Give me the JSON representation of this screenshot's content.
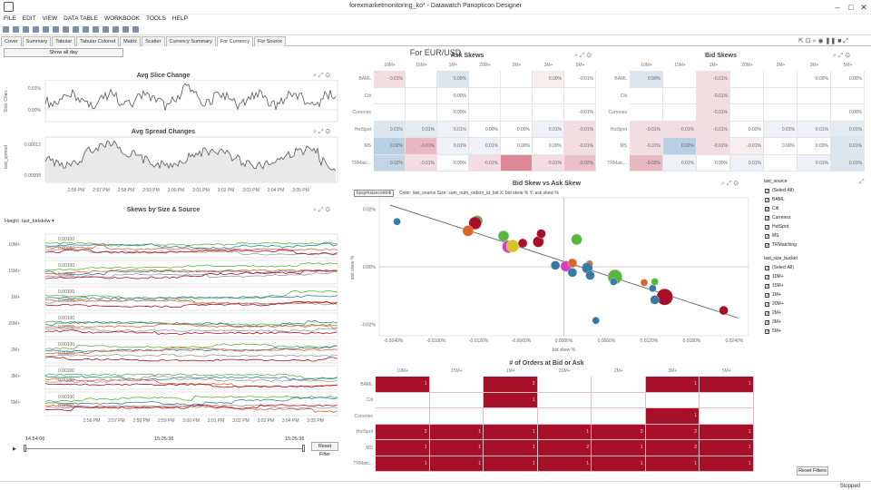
{
  "window": {
    "title": "forexmarketmonitoring_ko* - Datawatch Panopticon Designer"
  },
  "menu": [
    "FILE",
    "EDIT",
    "VIEW",
    "DATA TABLE",
    "WORKBOOK",
    "TOOLS",
    "HELP"
  ],
  "tabs": [
    "Cover",
    "Summary",
    "Tabular",
    "Tabular Colored",
    "Matrix",
    "Scatter",
    "Currency Summary",
    "For Currency",
    "For Source"
  ],
  "active_tab": "For Currency",
  "page_title": "For EUR/USD",
  "show_all_day": "Show all day",
  "avg_slice": {
    "title": "Avg Slice Change",
    "ylabel": "Slice Chan...",
    "yticks": [
      "0.01%",
      "0.00%"
    ]
  },
  "avg_spread": {
    "title": "Avg Spread Changes",
    "ylabel": "last_spread",
    "yticks": [
      "0.00012",
      "0.00008"
    ]
  },
  "time_ticks": [
    "2:56 PM",
    "2:57 PM",
    "2:58 PM",
    "2:59 PM",
    "3:00 PM",
    "3:01 PM",
    "3:02 PM",
    "3:03 PM",
    "3:04 PM",
    "3:05 PM"
  ],
  "skews": {
    "title": "Skews by Size & Source",
    "height_label": "Height",
    "height_value": "last_bidskew",
    "rows": [
      "10M+",
      "15M+",
      "1M+",
      "20M+",
      "2M+",
      "3M+",
      "5M+"
    ],
    "ytick_a": "0.00100",
    "ytick_b": "0.00050"
  },
  "slider": {
    "start": "14:54:06",
    "mid": "15:05:36",
    "end": "15:05:36",
    "reset": "Reset Filter"
  },
  "ask_skews": {
    "title": "Ask Skews",
    "cols": [
      "10M+",
      "15M+",
      "1M+",
      "20M+",
      "2M+",
      "3M+",
      "5M+"
    ],
    "rows": [
      "BAML",
      "Citi",
      "Currenex",
      "HotSpot",
      "MS",
      "TRMatc..."
    ],
    "cells": [
      [
        "-0.01%",
        "",
        "0.00%",
        "",
        "",
        "0.00%",
        "-0.01%"
      ],
      [
        "",
        "",
        "0.00%",
        "",
        "",
        "",
        ""
      ],
      [
        "",
        "",
        "0.00%",
        "",
        "",
        "",
        "-0.01%"
      ],
      [
        "0.01%",
        "0.01%",
        "0.01%",
        "0.00%",
        "0.00%",
        "0.01%",
        "-0.01%"
      ],
      [
        "0.02%",
        "-0.01%",
        "0.01%",
        "0.01%",
        "0.00%",
        "0.00%",
        "-0.01%"
      ],
      [
        "0.02%",
        "-0.01%",
        "0.00%",
        "-0.01%",
        "",
        "-0.01%",
        "-0.02%"
      ]
    ],
    "colors": [
      [
        "#f3dde2",
        "",
        "#dbe6ef",
        "",
        "",
        "#f7eef0",
        ""
      ],
      [
        "",
        "",
        "",
        "",
        "",
        "",
        ""
      ],
      [
        "",
        "",
        "",
        "",
        "",
        "",
        ""
      ],
      [
        "#dbe6ef",
        "#e4ecf2",
        "#eef2f6",
        "",
        "",
        "#eef2f6",
        "#f3dde2"
      ],
      [
        "#b9cfe2",
        "#e9b8c2",
        "#eef2f6",
        "#eef2f6",
        "",
        "",
        "#f3dde2"
      ],
      [
        "#c4d6e6",
        "#f3dde2",
        "",
        "#f3dde2",
        "#dd8896",
        "#f3dde2",
        "#ebc0c8"
      ]
    ]
  },
  "bid_skews": {
    "title": "Bid Skews",
    "cols": [
      "10M+",
      "15M+",
      "1M+",
      "20M+",
      "2M+",
      "3M+",
      "5M+"
    ],
    "rows": [
      "BAML",
      "Citi",
      "Currenex",
      "HotSpot",
      "MS",
      "TRMatc..."
    ],
    "cells": [
      [
        "0.00%",
        "",
        "-0.01%",
        "",
        "",
        "0.00%",
        "0.00%"
      ],
      [
        "",
        "",
        "-0.01%",
        "",
        "",
        "",
        ""
      ],
      [
        "",
        "",
        "-0.01%",
        "",
        "",
        "",
        "0.00%"
      ],
      [
        "-0.01%",
        "-0.01%",
        "-0.01%",
        "0.00%",
        "0.01%",
        "0.01%",
        "0.01%"
      ],
      [
        "-0.01%",
        "0.02%",
        "-0.01%",
        "-0.01%",
        "0.00%",
        "0.00%",
        "0.01%"
      ],
      [
        "-0.02%",
        "0.01%",
        "0.00%",
        "0.01%",
        "",
        "0.01%",
        "0.01%"
      ]
    ],
    "colors": [
      [
        "#dbe6ef",
        "",
        "#f3dde2",
        "",
        "",
        "",
        ""
      ],
      [
        "",
        "",
        "#f3dde2",
        "",
        "",
        "",
        ""
      ],
      [
        "",
        "",
        "#f3dde2",
        "",
        "",
        "",
        ""
      ],
      [
        "#f3dde2",
        "#f3dde2",
        "#f3dde2",
        "",
        "#eef2f6",
        "#eef2f6",
        "#e4ecf2"
      ],
      [
        "#f3dde2",
        "#b9cfe2",
        "#f3dde2",
        "#f7eef0",
        "",
        "",
        "#dbe6ef"
      ],
      [
        "#e9b8c2",
        "#eef2f6",
        "",
        "#eef2f6",
        "",
        "#eef2f6",
        "#dbe6ef"
      ]
    ]
  },
  "scatter": {
    "title": "Bid Skew vs Ask Skew",
    "legend_sel": "bysymsizecontrib",
    "legend_text": "Color: last_source  Size: sum_num_orders_at_bid  X: bid skew %  Y: ask skew %",
    "xlabel": "bid skew %",
    "ylabel": "ask skew %",
    "xticks": [
      "-0.0240%",
      "-0.0180%",
      "-0.0120%",
      "-0.0060%",
      "0.0000%",
      "0.0060%",
      "0.0120%",
      "0.0180%",
      "0.0240%"
    ],
    "yticks": [
      "0.02%",
      "0.00%",
      "-0.02%"
    ]
  },
  "chart_data": [
    {
      "type": "scatter",
      "title": "Bid Skew vs Ask Skew",
      "xlabel": "bid skew %",
      "ylabel": "ask skew %",
      "xlim": [
        -0.026,
        0.026
      ],
      "ylim": [
        -0.024,
        0.024
      ],
      "points": [
        {
          "x": -0.0235,
          "y": 0.0157,
          "size": 4,
          "color": "#3a79a6"
        },
        {
          "x": -0.0122,
          "y": 0.016,
          "size": 6,
          "color": "#5ab53e"
        },
        {
          "x": -0.0125,
          "y": 0.0152,
          "size": 7,
          "color": "#a8102a"
        },
        {
          "x": -0.0135,
          "y": 0.0125,
          "size": 6,
          "color": "#d8672b"
        },
        {
          "x": -0.0085,
          "y": 0.0107,
          "size": 6,
          "color": "#5ab53e"
        },
        {
          "x": -0.0078,
          "y": 0.007,
          "size": 7,
          "color": "#d441c0"
        },
        {
          "x": -0.0072,
          "y": 0.0072,
          "size": 7,
          "color": "#d9c32a"
        },
        {
          "x": -0.0058,
          "y": 0.0082,
          "size": 5,
          "color": "#a8102a"
        },
        {
          "x": -0.0036,
          "y": 0.0087,
          "size": 6,
          "color": "#a8102a"
        },
        {
          "x": -0.0032,
          "y": 0.0115,
          "size": 5,
          "color": "#a8102a"
        },
        {
          "x": -0.0012,
          "y": 0.0005,
          "size": 5,
          "color": "#3a79a6"
        },
        {
          "x": 0.0003,
          "y": 0.0002,
          "size": 6,
          "color": "#d441c0"
        },
        {
          "x": 0.0012,
          "y": 0.0013,
          "size": 5,
          "color": "#d8672b"
        },
        {
          "x": 0.0012,
          "y": -0.002,
          "size": 5,
          "color": "#3a79a6"
        },
        {
          "x": 0.0018,
          "y": 0.0095,
          "size": 6,
          "color": "#5ab53e"
        },
        {
          "x": 0.0036,
          "y": 0.001,
          "size": 4,
          "color": "#d8672b"
        },
        {
          "x": 0.0033,
          "y": -0.0004,
          "size": 6,
          "color": "#3a79a6"
        },
        {
          "x": 0.0037,
          "y": -0.003,
          "size": 5,
          "color": "#3a79a6"
        },
        {
          "x": 0.0072,
          "y": -0.0035,
          "size": 8,
          "color": "#5ab53e"
        },
        {
          "x": 0.007,
          "y": -0.0052,
          "size": 4,
          "color": "#3a79a6"
        },
        {
          "x": 0.0113,
          "y": -0.0055,
          "size": 4,
          "color": "#d8672b"
        },
        {
          "x": 0.0125,
          "y": -0.0075,
          "size": 4,
          "color": "#3a79a6"
        },
        {
          "x": 0.0128,
          "y": -0.0052,
          "size": 4,
          "color": "#5ab53e"
        },
        {
          "x": 0.0142,
          "y": -0.0105,
          "size": 9,
          "color": "#a8102a"
        },
        {
          "x": 0.0128,
          "y": -0.0115,
          "size": 5,
          "color": "#3a79a6"
        },
        {
          "x": 0.0045,
          "y": -0.0187,
          "size": 4,
          "color": "#3a79a6"
        },
        {
          "x": 0.0225,
          "y": -0.0152,
          "size": 5,
          "color": "#a8102a"
        }
      ],
      "trend": [
        [
          -0.0245,
          0.0215
        ],
        [
          0.0245,
          -0.0178
        ]
      ]
    },
    {
      "type": "heatmap",
      "title": "# of Orders at Bid or Ask",
      "categories": [
        "10M+",
        "15M+",
        "1M+",
        "20M+",
        "2M+",
        "3M+",
        "5M+"
      ],
      "rows": [
        "BAML",
        "Citi",
        "Currenex",
        "HotSpot",
        "MS",
        "TRMatc..."
      ],
      "values": [
        [
          1,
          null,
          2,
          null,
          null,
          1,
          1
        ],
        [
          null,
          null,
          1,
          null,
          null,
          null,
          null
        ],
        [
          null,
          null,
          null,
          null,
          null,
          1,
          null
        ],
        [
          2,
          1,
          1,
          1,
          3,
          2,
          1
        ],
        [
          1,
          1,
          1,
          2,
          1,
          2,
          1
        ],
        [
          1,
          1,
          1,
          1,
          1,
          1,
          1
        ]
      ]
    }
  ],
  "filters": {
    "source_title": "last_source",
    "source_items": [
      "(Select All)",
      "BAML",
      "Citi",
      "Currenex",
      "HotSpot",
      "MS",
      "TRMatching"
    ],
    "bucket_title": "last_size_bucket",
    "bucket_items": [
      "(Select All)",
      "10M+",
      "15M+",
      "1M+",
      "20M+",
      "2M+",
      "3M+",
      "5M+"
    ],
    "reset": "Reset Filters"
  },
  "orders": {
    "title": "# of Orders at Bid or Ask"
  },
  "status": "Stopped"
}
